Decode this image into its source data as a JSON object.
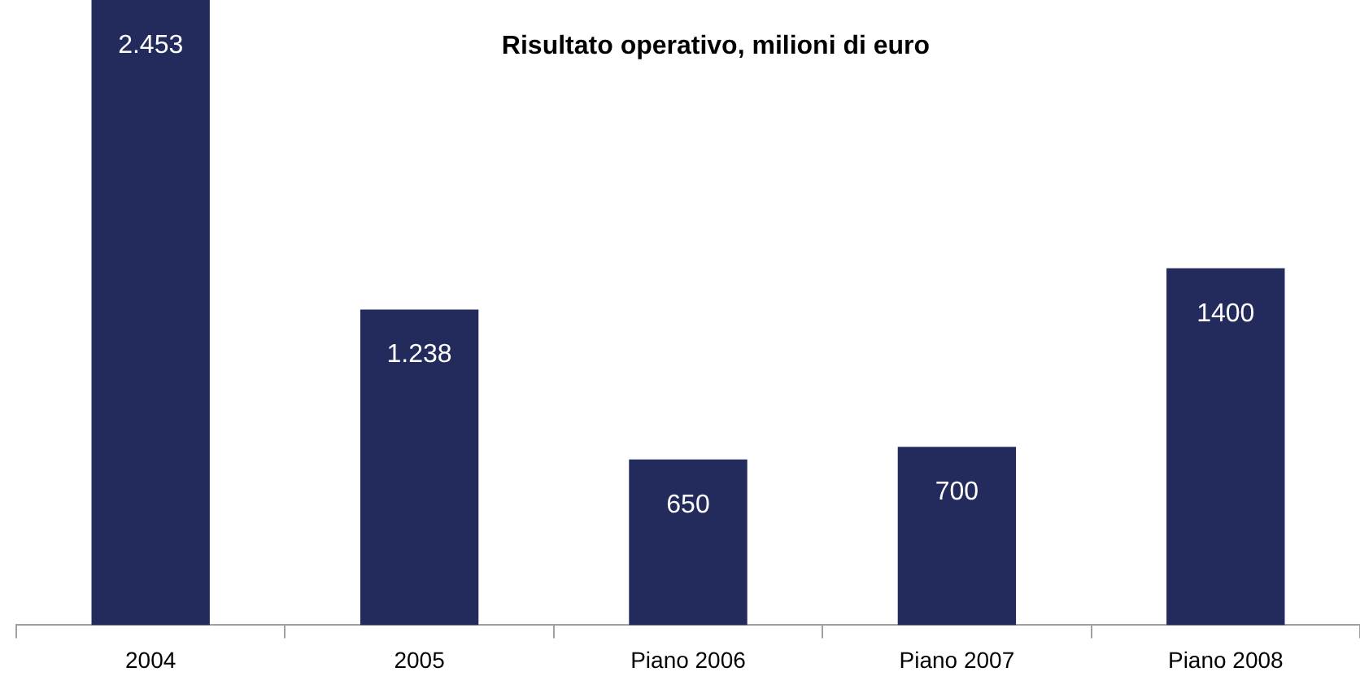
{
  "chart_data": {
    "type": "bar",
    "title": "Risultato operativo, milioni di euro",
    "categories": [
      "2004",
      "2005",
      "Piano 2006",
      "Piano 2007",
      "Piano 2008"
    ],
    "values": [
      2453,
      1238,
      650,
      700,
      1400
    ],
    "value_labels": [
      "2.453",
      "1.238",
      "650",
      "700",
      "1400"
    ],
    "color": "#232a5c",
    "grid": false,
    "legend": false
  }
}
